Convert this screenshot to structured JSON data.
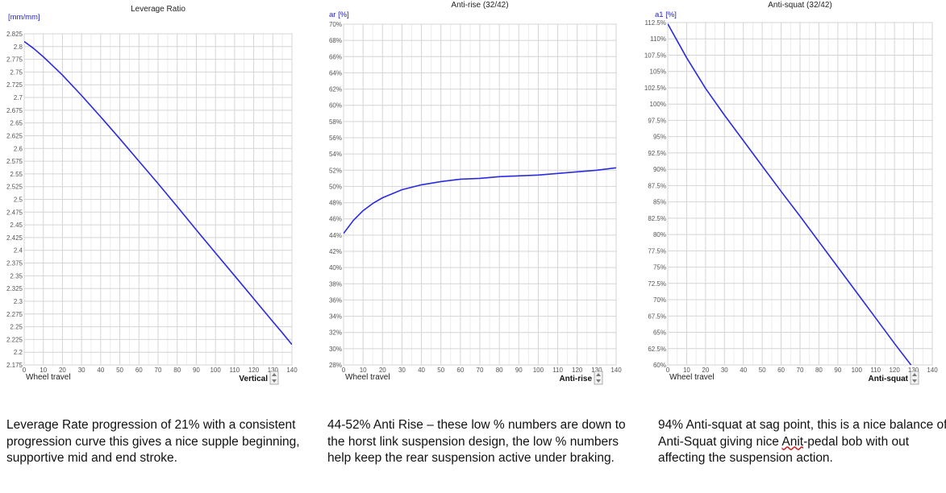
{
  "charts": [
    {
      "caption": "Leverage Rate progression of 21% with a consistent progression curve this gives a nice supple beginning, supportive mid and end stroke.",
      "selector_label": "Vertical",
      "chart_data": {
        "type": "line",
        "title": "Leverage Ratio",
        "ylabel": "[mm/mm]",
        "xlabel": "Wheel travel",
        "xlim": [
          0,
          140
        ],
        "ylim": [
          2.175,
          2.825
        ],
        "x_ticks": [
          0,
          10,
          20,
          30,
          40,
          50,
          60,
          70,
          80,
          90,
          100,
          110,
          120,
          130,
          140
        ],
        "x_tick_labels": [
          "0",
          "10",
          "20",
          "30",
          "40",
          "50",
          "60",
          "70",
          "80",
          "90",
          "100",
          "110",
          "120",
          "130",
          "140"
        ],
        "y_ticks": [
          2.175,
          2.2,
          2.225,
          2.25,
          2.275,
          2.3,
          2.325,
          2.35,
          2.375,
          2.4,
          2.425,
          2.45,
          2.475,
          2.5,
          2.525,
          2.55,
          2.575,
          2.6,
          2.625,
          2.65,
          2.675,
          2.7,
          2.725,
          2.75,
          2.775,
          2.8,
          2.825
        ],
        "y_tick_labels": [
          "2.175",
          "2.2",
          "2.225",
          "2.25",
          "2.275",
          "2.3",
          "2.325",
          "2.35",
          "2.375",
          "2.4",
          "2.425",
          "2.45",
          "2.475",
          "2.5",
          "2.525",
          "2.55",
          "2.575",
          "2.6",
          "2.625",
          "2.65",
          "2.675",
          "2.7",
          "2.725",
          "2.75",
          "2.775",
          "2.8",
          "2.825"
        ],
        "grid": true,
        "line_color": "#2a2ae0",
        "series": [
          {
            "x": [
              0,
              5,
              10,
              15,
              20,
              30,
              40,
              50,
              60,
              70,
              80,
              90,
              100,
              110,
              120,
              130,
              135,
              140
            ],
            "values": [
              2.81,
              2.796,
              2.78,
              2.762,
              2.744,
              2.704,
              2.662,
              2.619,
              2.575,
              2.531,
              2.486,
              2.44,
              2.395,
              2.35,
              2.305,
              2.26,
              2.238,
              2.215
            ]
          }
        ]
      }
    },
    {
      "caption": "44-52% Anti Rise – these low % numbers are down to the horst link suspension design, the low % numbers help keep the rear suspension active under braking.",
      "selector_label": "Anti-rise",
      "chart_data": {
        "type": "line",
        "title": "Anti-rise (32/42)",
        "ylabel": "ar [%]",
        "xlabel": "Wheel travel",
        "xlim": [
          0,
          140
        ],
        "ylim": [
          28,
          70
        ],
        "x_ticks": [
          0,
          10,
          20,
          30,
          40,
          50,
          60,
          70,
          80,
          90,
          100,
          110,
          120,
          130,
          140
        ],
        "x_tick_labels": [
          "0",
          "10",
          "20",
          "30",
          "40",
          "50",
          "60",
          "70",
          "80",
          "90",
          "100",
          "110",
          "120",
          "130",
          "140"
        ],
        "y_ticks": [
          28,
          30,
          32,
          34,
          36,
          38,
          40,
          42,
          44,
          46,
          48,
          50,
          52,
          54,
          56,
          58,
          60,
          62,
          64,
          66,
          68,
          70
        ],
        "y_tick_labels": [
          "28%",
          "30%",
          "32%",
          "34%",
          "36%",
          "38%",
          "40%",
          "42%",
          "44%",
          "46%",
          "48%",
          "50%",
          "52%",
          "54%",
          "56%",
          "58%",
          "60%",
          "62%",
          "64%",
          "66%",
          "68%",
          "70%"
        ],
        "grid": true,
        "line_color": "#2a2ae0",
        "series": [
          {
            "x": [
              0,
              5,
              10,
              15,
              20,
              25,
              30,
              40,
              50,
              60,
              70,
              80,
              90,
              100,
              110,
              120,
              130,
              140
            ],
            "values": [
              44.2,
              45.8,
              47.0,
              47.9,
              48.6,
              49.1,
              49.6,
              50.2,
              50.6,
              50.9,
              51.0,
              51.2,
              51.3,
              51.4,
              51.6,
              51.8,
              52.0,
              52.3
            ]
          }
        ]
      }
    },
    {
      "caption_parts": [
        "94% Anti-squat at sag point, this is a nice balance of Anti-Squat giving nice ",
        "Anit",
        "-pedal bob with out affecting the suspension action."
      ],
      "selector_label": "Anti-squat",
      "chart_data": {
        "type": "line",
        "title": "Anti-squat (32/42)",
        "ylabel": "a1 [%]",
        "xlabel": "Wheel travel",
        "xlim": [
          0,
          140
        ],
        "ylim": [
          60,
          112.5
        ],
        "x_ticks": [
          0,
          10,
          20,
          30,
          40,
          50,
          60,
          70,
          80,
          90,
          100,
          110,
          120,
          130,
          140
        ],
        "x_tick_labels": [
          "0",
          "10",
          "20",
          "30",
          "40",
          "50",
          "60",
          "70",
          "80",
          "90",
          "100",
          "110",
          "120",
          "130",
          "140"
        ],
        "y_ticks": [
          60,
          62.5,
          65,
          67.5,
          70,
          72.5,
          75,
          77.5,
          80,
          82.5,
          85,
          87.5,
          90,
          92.5,
          95,
          97.5,
          100,
          102.5,
          105,
          107.5,
          110,
          112.5
        ],
        "y_tick_labels": [
          "60%",
          "62.5%",
          "65%",
          "67.5%",
          "70%",
          "72.5%",
          "75%",
          "77.5%",
          "80%",
          "82.5%",
          "85%",
          "87.5%",
          "90%",
          "92.5%",
          "95%",
          "97.5%",
          "100%",
          "102.5%",
          "105%",
          "107.5%",
          "110%",
          "112.5%"
        ],
        "grid": true,
        "line_color": "#2a2ae0",
        "series": [
          {
            "x": [
              0,
              5,
              10,
              20,
              30,
              40,
              50,
              60,
              70,
              80,
              90,
              100,
              110,
              120,
              130,
              140
            ],
            "values": [
              112.3,
              109.7,
              107.1,
              102.4,
              98.3,
              94.4,
              90.5,
              86.6,
              82.8,
              78.9,
              75.0,
              71.1,
              67.2,
              63.3,
              59.5,
              55.5
            ]
          }
        ]
      }
    }
  ]
}
